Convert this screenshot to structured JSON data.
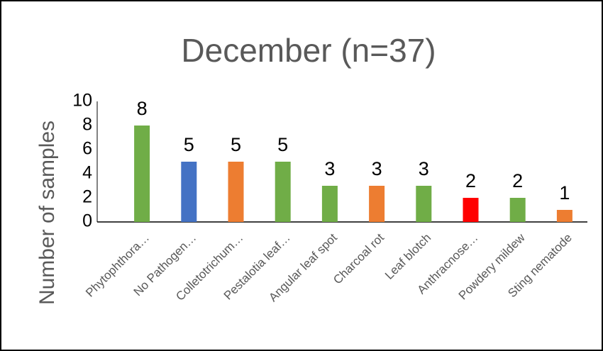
{
  "chart_data": {
    "type": "bar",
    "title": "December (n=37)",
    "y_label": "Number of samples",
    "categories": [
      "Phytophthora…",
      "No Pathogen…",
      "Colletotrichum…",
      "Pestalotia leaf…",
      "Angular leaf spot",
      "Charcoal rot",
      "Leaf blotch",
      "Anthracnose…",
      "Powdery mildew",
      "Sting nematode"
    ],
    "values": [
      8,
      5,
      5,
      5,
      3,
      3,
      3,
      2,
      2,
      1
    ],
    "colors": [
      "#70ad47",
      "#4472c4",
      "#ed7d31",
      "#70ad47",
      "#70ad47",
      "#ed7d31",
      "#70ad47",
      "#ff0000",
      "#70ad47",
      "#ed7d31"
    ],
    "ylim": [
      0,
      10
    ],
    "yticks": [
      0,
      2,
      4,
      6,
      8,
      10
    ],
    "grid": false
  }
}
